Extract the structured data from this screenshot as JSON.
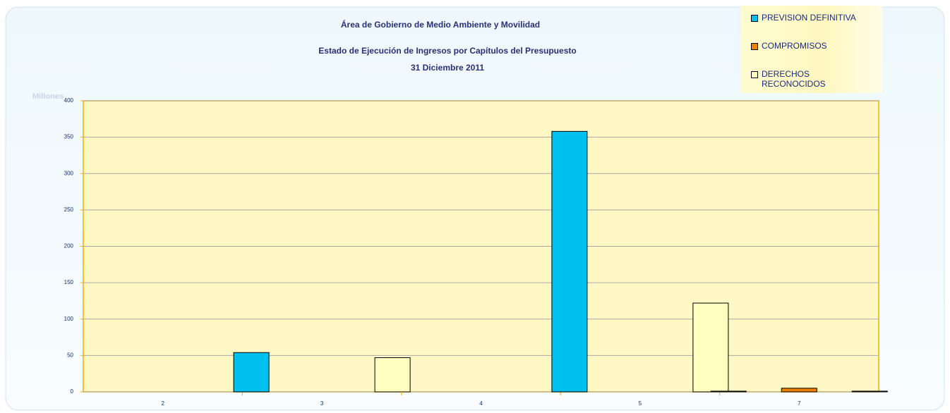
{
  "chart_data": {
    "type": "bar",
    "title": "Área de Gobierno de Medio Ambiente y Movilidad",
    "subtitle": "Estado de Ejecución de Ingresos por Capítulos del Presupuesto",
    "date": "31 Diciembre 2011",
    "y_label": "Millones",
    "categories": [
      "2",
      "3",
      "4",
      "5",
      "7"
    ],
    "series": [
      {
        "name": "PREVISION DEFINITIVA",
        "color": "#00c0f0",
        "values": [
          0,
          54,
          0,
          358,
          1
        ]
      },
      {
        "name": "COMPROMISOS",
        "color": "#f08000",
        "values": [
          0,
          0,
          0,
          0,
          5
        ]
      },
      {
        "name": "DERECHOS RECONOCIDOS",
        "color": "#ffffc0",
        "values": [
          0,
          47,
          0,
          122,
          1
        ]
      }
    ],
    "ylim": [
      0,
      400
    ],
    "yticks": [
      0,
      50,
      100,
      150,
      200,
      250,
      300,
      350,
      400
    ],
    "grid": true
  }
}
